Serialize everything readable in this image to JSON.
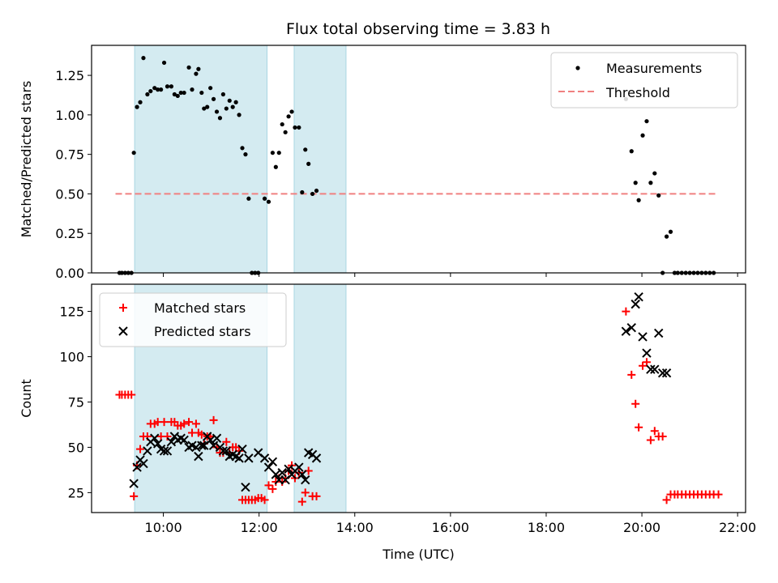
{
  "chart_data": [
    {
      "type": "scatter",
      "title": "Flux total observing time = 3.83 h",
      "xlabel": "",
      "ylabel": "Matched/Predicted stars",
      "xlim": [
        "08:30",
        "22:10"
      ],
      "ylim": [
        0,
        1.44
      ],
      "yticks": [
        "0.00",
        "0.25",
        "0.50",
        "0.75",
        "1.00",
        "1.25"
      ],
      "grid": false,
      "legend_placement": "top-right",
      "shaded_spans": [
        [
          "09:24",
          "12:10"
        ],
        [
          "12:44",
          "13:49"
        ]
      ],
      "shade_color": "#d4ebf1",
      "threshold": {
        "name": "Threshold",
        "y": 0.5,
        "x_from": "09:00",
        "x_to": "21:36",
        "color": "#f08080"
      },
      "series": [
        {
          "name": "Measurements",
          "marker": "dot",
          "color": "#000000",
          "points": [
            [
              "09:05",
              0
            ],
            [
              "09:08",
              0
            ],
            [
              "09:12",
              0
            ],
            [
              "09:16",
              0
            ],
            [
              "09:20",
              0
            ],
            [
              "09:23",
              0.76
            ],
            [
              "09:27",
              1.05
            ],
            [
              "09:31",
              1.08
            ],
            [
              "09:35",
              1.36
            ],
            [
              "09:40",
              1.13
            ],
            [
              "09:44",
              1.15
            ],
            [
              "09:49",
              1.17
            ],
            [
              "09:53",
              1.16
            ],
            [
              "09:57",
              1.16
            ],
            [
              "10:01",
              1.33
            ],
            [
              "10:05",
              1.18
            ],
            [
              "10:10",
              1.18
            ],
            [
              "10:14",
              1.13
            ],
            [
              "10:18",
              1.12
            ],
            [
              "10:22",
              1.14
            ],
            [
              "10:26",
              1.14
            ],
            [
              "10:32",
              1.3
            ],
            [
              "10:36",
              1.16
            ],
            [
              "10:41",
              1.26
            ],
            [
              "10:44",
              1.29
            ],
            [
              "10:48",
              1.14
            ],
            [
              "10:51",
              1.04
            ],
            [
              "10:55",
              1.05
            ],
            [
              "10:59",
              1.17
            ],
            [
              "11:03",
              1.1
            ],
            [
              "11:07",
              1.02
            ],
            [
              "11:11",
              0.98
            ],
            [
              "11:15",
              1.13
            ],
            [
              "11:19",
              1.04
            ],
            [
              "11:23",
              1.09
            ],
            [
              "11:27",
              1.05
            ],
            [
              "11:31",
              1.08
            ],
            [
              "11:35",
              1.0
            ],
            [
              "11:39",
              0.79
            ],
            [
              "11:43",
              0.75
            ],
            [
              "11:47",
              0.47
            ],
            [
              "11:51",
              0
            ],
            [
              "11:55",
              0
            ],
            [
              "11:59",
              0
            ],
            [
              "12:07",
              0.47
            ],
            [
              "12:12",
              0.45
            ],
            [
              "12:17",
              0.76
            ],
            [
              "12:21",
              0.67
            ],
            [
              "12:25",
              0.76
            ],
            [
              "12:29",
              0.94
            ],
            [
              "12:33",
              0.89
            ],
            [
              "12:37",
              0.99
            ],
            [
              "12:41",
              1.02
            ],
            [
              "12:45",
              0.92
            ],
            [
              "12:50",
              0.92
            ],
            [
              "12:54",
              0.51
            ],
            [
              "12:58",
              0.78
            ],
            [
              "13:02",
              0.69
            ],
            [
              "13:07",
              0.5
            ],
            [
              "13:12",
              0.52
            ],
            [
              "19:40",
              1.1
            ],
            [
              "19:47",
              0.77
            ],
            [
              "19:52",
              0.57
            ],
            [
              "19:56",
              0.46
            ],
            [
              "20:01",
              0.87
            ],
            [
              "20:06",
              0.96
            ],
            [
              "20:11",
              0.57
            ],
            [
              "20:16",
              0.63
            ],
            [
              "20:21",
              0.49
            ],
            [
              "20:26",
              0
            ],
            [
              "20:31",
              0.23
            ],
            [
              "20:36",
              0.26
            ],
            [
              "20:41",
              0
            ],
            [
              "20:45",
              0
            ],
            [
              "20:50",
              0
            ],
            [
              "20:55",
              0
            ],
            [
              "21:00",
              0
            ],
            [
              "21:05",
              0
            ],
            [
              "21:10",
              0
            ],
            [
              "21:15",
              0
            ],
            [
              "21:20",
              0
            ],
            [
              "21:25",
              0
            ],
            [
              "21:30",
              0
            ]
          ]
        }
      ]
    },
    {
      "type": "scatter",
      "xlabel": "Time (UTC)",
      "ylabel": "Count",
      "xlim": [
        "08:30",
        "22:10"
      ],
      "ylim": [
        14,
        140
      ],
      "xticks": [
        "10:00",
        "12:00",
        "14:00",
        "16:00",
        "18:00",
        "20:00",
        "22:00"
      ],
      "yticks": [
        "25",
        "50",
        "75",
        "100",
        "125"
      ],
      "grid": false,
      "legend_placement": "top-left",
      "shaded_spans": [
        [
          "09:24",
          "12:10"
        ],
        [
          "12:44",
          "13:49"
        ]
      ],
      "shade_color": "#d4ebf1",
      "series": [
        {
          "name": "Matched stars",
          "marker": "plus",
          "color": "#ff0000",
          "points": [
            [
              "09:05",
              79
            ],
            [
              "09:08",
              79
            ],
            [
              "09:12",
              79
            ],
            [
              "09:16",
              79
            ],
            [
              "09:20",
              79
            ],
            [
              "09:23",
              23
            ],
            [
              "09:27",
              40
            ],
            [
              "09:31",
              49
            ],
            [
              "09:35",
              56
            ],
            [
              "09:40",
              56
            ],
            [
              "09:44",
              63
            ],
            [
              "09:49",
              63
            ],
            [
              "09:53",
              64
            ],
            [
              "09:57",
              56
            ],
            [
              "10:01",
              64
            ],
            [
              "10:05",
              56
            ],
            [
              "10:10",
              64
            ],
            [
              "10:14",
              64
            ],
            [
              "10:18",
              62
            ],
            [
              "10:22",
              62
            ],
            [
              "10:26",
              63
            ],
            [
              "10:32",
              64
            ],
            [
              "10:36",
              58
            ],
            [
              "10:41",
              63
            ],
            [
              "10:44",
              58
            ],
            [
              "10:48",
              57
            ],
            [
              "10:51",
              52
            ],
            [
              "10:55",
              56
            ],
            [
              "10:59",
              56
            ],
            [
              "11:03",
              65
            ],
            [
              "11:07",
              50
            ],
            [
              "11:11",
              47
            ],
            [
              "11:15",
              47
            ],
            [
              "11:19",
              53
            ],
            [
              "11:23",
              47
            ],
            [
              "11:27",
              50
            ],
            [
              "11:31",
              50
            ],
            [
              "11:35",
              48
            ],
            [
              "11:39",
              21
            ],
            [
              "11:43",
              21
            ],
            [
              "11:47",
              21
            ],
            [
              "11:51",
              21
            ],
            [
              "11:55",
              21
            ],
            [
              "11:59",
              22
            ],
            [
              "12:03",
              22
            ],
            [
              "12:07",
              21
            ],
            [
              "12:12",
              29
            ],
            [
              "12:17",
              27
            ],
            [
              "12:21",
              31
            ],
            [
              "12:25",
              33
            ],
            [
              "12:29",
              31
            ],
            [
              "12:33",
              33
            ],
            [
              "12:37",
              37
            ],
            [
              "12:41",
              40
            ],
            [
              "12:45",
              33
            ],
            [
              "12:50",
              36
            ],
            [
              "12:54",
              20
            ],
            [
              "12:58",
              25
            ],
            [
              "13:02",
              37
            ],
            [
              "13:07",
              23
            ],
            [
              "13:12",
              23
            ],
            [
              "19:40",
              125
            ],
            [
              "19:47",
              90
            ],
            [
              "19:52",
              74
            ],
            [
              "19:56",
              61
            ],
            [
              "20:01",
              95
            ],
            [
              "20:06",
              97
            ],
            [
              "20:11",
              54
            ],
            [
              "20:16",
              59
            ],
            [
              "20:21",
              56
            ],
            [
              "20:26",
              56
            ],
            [
              "20:31",
              21
            ],
            [
              "20:36",
              24
            ],
            [
              "20:41",
              24
            ],
            [
              "20:45",
              24
            ],
            [
              "20:50",
              24
            ],
            [
              "20:55",
              24
            ],
            [
              "21:00",
              24
            ],
            [
              "21:05",
              24
            ],
            [
              "21:10",
              24
            ],
            [
              "21:15",
              24
            ],
            [
              "21:20",
              24
            ],
            [
              "21:25",
              24
            ],
            [
              "21:30",
              24
            ],
            [
              "21:36",
              24
            ]
          ]
        },
        {
          "name": "Predicted stars",
          "marker": "x",
          "color": "#000000",
          "points": [
            [
              "09:23",
              30
            ],
            [
              "09:27",
              39
            ],
            [
              "09:31",
              43
            ],
            [
              "09:35",
              41
            ],
            [
              "09:40",
              48
            ],
            [
              "09:44",
              53
            ],
            [
              "09:49",
              55
            ],
            [
              "09:53",
              52
            ],
            [
              "09:57",
              49
            ],
            [
              "10:01",
              48
            ],
            [
              "10:05",
              48
            ],
            [
              "10:10",
              53
            ],
            [
              "10:14",
              56
            ],
            [
              "10:18",
              54
            ],
            [
              "10:22",
              55
            ],
            [
              "10:26",
              54
            ],
            [
              "10:32",
              50
            ],
            [
              "10:36",
              51
            ],
            [
              "10:41",
              50
            ],
            [
              "10:44",
              45
            ],
            [
              "10:48",
              51
            ],
            [
              "10:51",
              51
            ],
            [
              "10:55",
              56
            ],
            [
              "10:59",
              54
            ],
            [
              "11:03",
              51
            ],
            [
              "11:07",
              55
            ],
            [
              "11:11",
              50
            ],
            [
              "11:15",
              48
            ],
            [
              "11:19",
              48
            ],
            [
              "11:23",
              45
            ],
            [
              "11:27",
              46
            ],
            [
              "11:31",
              45
            ],
            [
              "11:35",
              44
            ],
            [
              "11:39",
              49
            ],
            [
              "11:43",
              28
            ],
            [
              "11:47",
              44
            ],
            [
              "11:59",
              47
            ],
            [
              "12:07",
              44
            ],
            [
              "12:12",
              39
            ],
            [
              "12:17",
              42
            ],
            [
              "12:21",
              35
            ],
            [
              "12:25",
              32
            ],
            [
              "12:29",
              36
            ],
            [
              "12:33",
              32
            ],
            [
              "12:37",
              38
            ],
            [
              "12:41",
              35
            ],
            [
              "12:45",
              37
            ],
            [
              "12:50",
              39
            ],
            [
              "12:54",
              35
            ],
            [
              "12:58",
              32
            ],
            [
              "13:02",
              47
            ],
            [
              "13:07",
              46
            ],
            [
              "13:12",
              44
            ],
            [
              "19:40",
              114
            ],
            [
              "19:47",
              116
            ],
            [
              "19:52",
              129
            ],
            [
              "19:56",
              133
            ],
            [
              "20:01",
              111
            ],
            [
              "20:06",
              102
            ],
            [
              "20:11",
              93
            ],
            [
              "20:16",
              93
            ],
            [
              "20:21",
              113
            ],
            [
              "20:26",
              91
            ],
            [
              "20:31",
              91
            ]
          ]
        }
      ]
    }
  ]
}
